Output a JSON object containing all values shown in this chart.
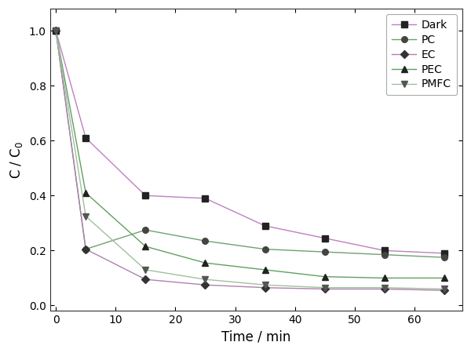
{
  "series": [
    {
      "label": "Dark",
      "line_color": "#c080c0",
      "marker_color": "#222222",
      "marker": "s",
      "x": [
        0,
        5,
        15,
        25,
        35,
        45,
        55,
        65
      ],
      "y": [
        1.0,
        0.61,
        0.4,
        0.39,
        0.29,
        0.245,
        0.2,
        0.19
      ]
    },
    {
      "label": "PC",
      "line_color": "#70a070",
      "marker_color": "#444444",
      "marker": "o",
      "x": [
        0,
        5,
        15,
        25,
        35,
        45,
        55,
        65
      ],
      "y": [
        1.0,
        0.205,
        0.275,
        0.235,
        0.205,
        0.195,
        0.185,
        0.175
      ]
    },
    {
      "label": "EC",
      "line_color": "#b080b0",
      "marker_color": "#333333",
      "marker": "D",
      "x": [
        0,
        5,
        15,
        25,
        35,
        45,
        55,
        65
      ],
      "y": [
        1.0,
        0.205,
        0.095,
        0.075,
        0.065,
        0.06,
        0.06,
        0.055
      ]
    },
    {
      "label": "PEC",
      "line_color": "#60a060",
      "marker_color": "#222222",
      "marker": "^",
      "x": [
        0,
        5,
        15,
        25,
        35,
        45,
        55,
        65
      ],
      "y": [
        1.0,
        0.41,
        0.215,
        0.155,
        0.13,
        0.105,
        0.1,
        0.1
      ]
    },
    {
      "label": "PMFC",
      "line_color": "#a0c0a0",
      "marker_color": "#555555",
      "marker": "v",
      "x": [
        0,
        5,
        15,
        25,
        35,
        45,
        55,
        65
      ],
      "y": [
        1.0,
        0.325,
        0.13,
        0.095,
        0.075,
        0.065,
        0.065,
        0.06
      ]
    }
  ],
  "xlabel": "Time / min",
  "ylabel": "C / C$_0$",
  "xlim": [
    -1,
    68
  ],
  "ylim": [
    -0.02,
    1.08
  ],
  "xticks": [
    0,
    10,
    20,
    30,
    40,
    50,
    60
  ],
  "yticks": [
    0.0,
    0.2,
    0.4,
    0.6,
    0.8,
    1.0
  ],
  "legend_loc": "upper right",
  "background_color": "#ffffff",
  "marker_size": 6,
  "line_width": 1.0
}
